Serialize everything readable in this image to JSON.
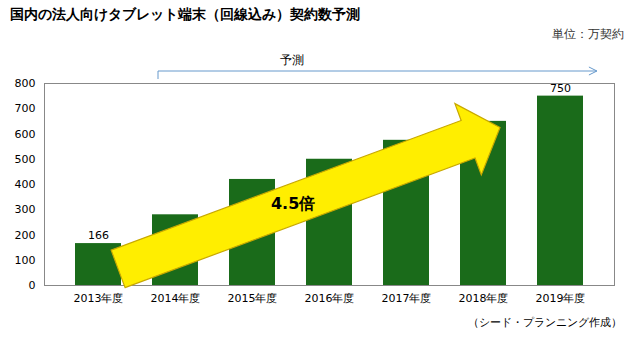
{
  "chart_data": {
    "type": "bar",
    "title": "国内の法人向けタブレット端末（回線込み）契約数予測",
    "subtitle": "単位：万契約",
    "caption": "（シード・プランニング作成）",
    "categories": [
      "2013年度",
      "2014年度",
      "2015年度",
      "2016年度",
      "2017年度",
      "2018年度",
      "2019年度"
    ],
    "values": [
      166,
      280,
      420,
      500,
      575,
      650,
      750
    ],
    "value_labels": [
      "166",
      null,
      null,
      null,
      null,
      null,
      "750"
    ],
    "color": "#1a6b1a",
    "ylim": [
      0,
      800
    ],
    "yticks": [
      0,
      100,
      200,
      300,
      400,
      500,
      600,
      700,
      800
    ],
    "grid": false,
    "annotations": [
      "4.5倍",
      "予測"
    ]
  }
}
